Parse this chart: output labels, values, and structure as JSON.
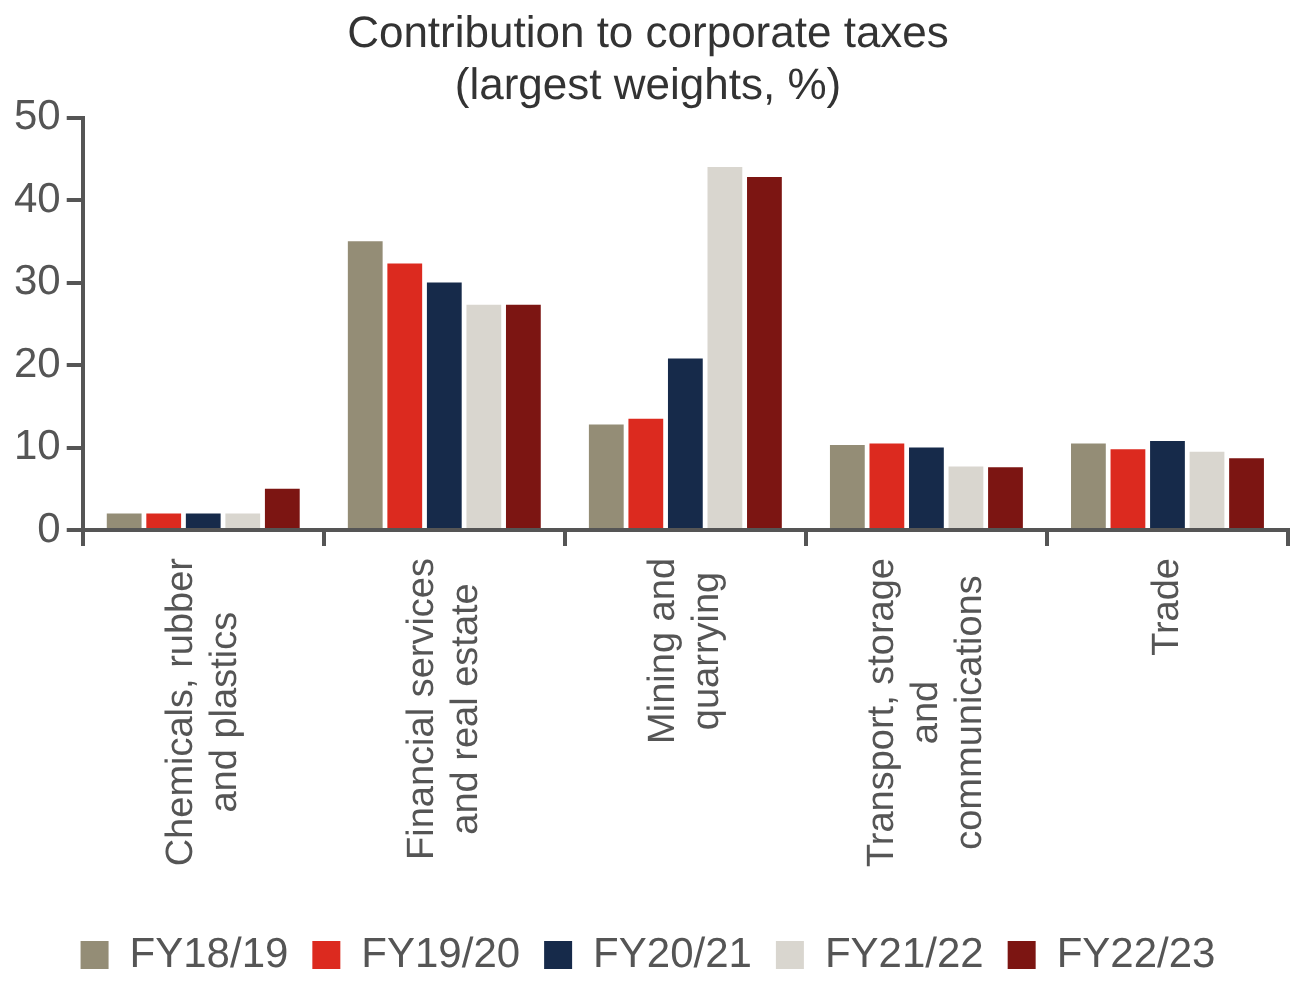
{
  "chart_data": {
    "type": "bar",
    "title": "Contribution to corporate taxes (largest weights, %)",
    "categories": [
      "Chemicals, rubber and plastics",
      "Financial services and real estate",
      "Mining and quarrying",
      "Transport, storage and communications",
      "Trade"
    ],
    "series": [
      {
        "name": "FY18/19",
        "color": "#948d76",
        "values": [
          2,
          35,
          12.8,
          10.3,
          10.5
        ]
      },
      {
        "name": "FY19/20",
        "color": "#dc2a1f",
        "values": [
          2,
          32.3,
          13.5,
          10.5,
          9.8
        ]
      },
      {
        "name": "FY20/21",
        "color": "#162a4a",
        "values": [
          2,
          30,
          20.8,
          10,
          10.8
        ]
      },
      {
        "name": "FY21/22",
        "color": "#d9d6cf",
        "values": [
          2,
          27.3,
          44,
          7.7,
          9.5
        ]
      },
      {
        "name": "FY22/23",
        "color": "#7c1512",
        "values": [
          5,
          27.3,
          42.8,
          7.6,
          8.7
        ]
      }
    ],
    "ylim": [
      0,
      50
    ],
    "yticks": [
      0,
      10,
      20,
      30,
      40,
      50
    ],
    "grid": false,
    "legend": "bottom"
  }
}
